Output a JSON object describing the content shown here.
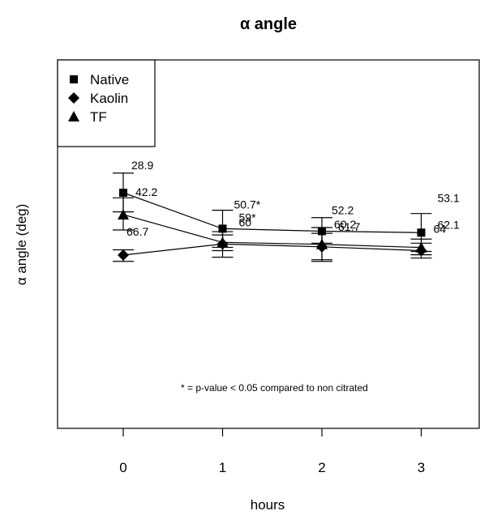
{
  "chart_data": {
    "type": "line",
    "title": "α angle",
    "xlabel": "hours",
    "ylabel": "α angle (deg)",
    "x": [
      0,
      1,
      2,
      3
    ],
    "x_tick_labels": [
      "0",
      "1",
      "2",
      "3"
    ],
    "series": [
      {
        "name": "Native",
        "marker": "square",
        "values": [
          28.9,
          50.7,
          52.2,
          53.1
        ],
        "error_low": [
          17.0,
          39.5,
          44.0,
          41.5
        ],
        "error_high": [
          40.5,
          62.0,
          59.5,
          64.5
        ],
        "labels": [
          "28.9",
          "50.7*",
          "52.2",
          "53.1"
        ]
      },
      {
        "name": "Kaolin",
        "marker": "diamond",
        "values": [
          66.7,
          60,
          61.7,
          64
        ],
        "error_low": [
          63.5,
          52.5,
          53.5,
          59.5
        ],
        "error_high": [
          70.5,
          68.0,
          70.5,
          68.5
        ],
        "labels": [
          "66.7",
          "60",
          "61.7",
          "64"
        ]
      },
      {
        "name": "TF",
        "marker": "triangle",
        "values": [
          42.2,
          59,
          60.2,
          62.1
        ],
        "error_low": [
          32.0,
          54.5,
          50.0,
          57.0
        ],
        "error_high": [
          51.5,
          64.0,
          69.5,
          66.5
        ],
        "labels": [
          "42.2",
          "59*",
          "60.2",
          "62.1"
        ]
      }
    ],
    "annotation": "* = p-value < 0.05 compared to non citrated",
    "legend_position": "top-left",
    "grid": false
  }
}
